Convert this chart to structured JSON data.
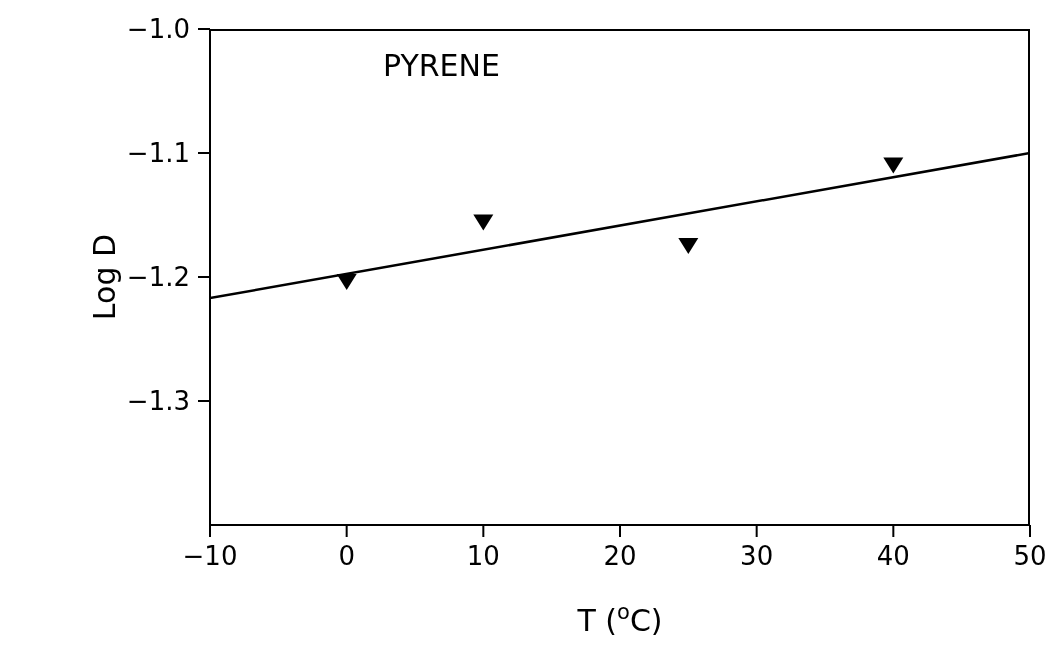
{
  "chart_data": {
    "type": "scatter",
    "xlabel": "T ($^{o}$C)",
    "ylabel": "Log D",
    "annotations": [
      "PYRENE"
    ],
    "xlim": [
      -10,
      50
    ],
    "xticks": [
      -10,
      0,
      10,
      20,
      30,
      40,
      50
    ],
    "ylim": [
      -1.4,
      -1.0
    ],
    "yticks": [
      -1.3,
      -1.2,
      -1.1,
      {
        "value": -1.0,
        "label": "−1.0"
      }
    ],
    "grid": false,
    "legend": false,
    "series": [
      {
        "color": "#000000",
        "marker": "triangle",
        "x": [
          0,
          10,
          25,
          40
        ],
        "values": [
          -1.204,
          -1.156,
          -1.175,
          -1.11
        ]
      },
      {
        "type": "line",
        "color": "#000000",
        "x": [
          -10,
          50
        ],
        "values": [
          -1.217,
          -1.1
        ],
        "line_style": "solid"
      }
    ]
  }
}
